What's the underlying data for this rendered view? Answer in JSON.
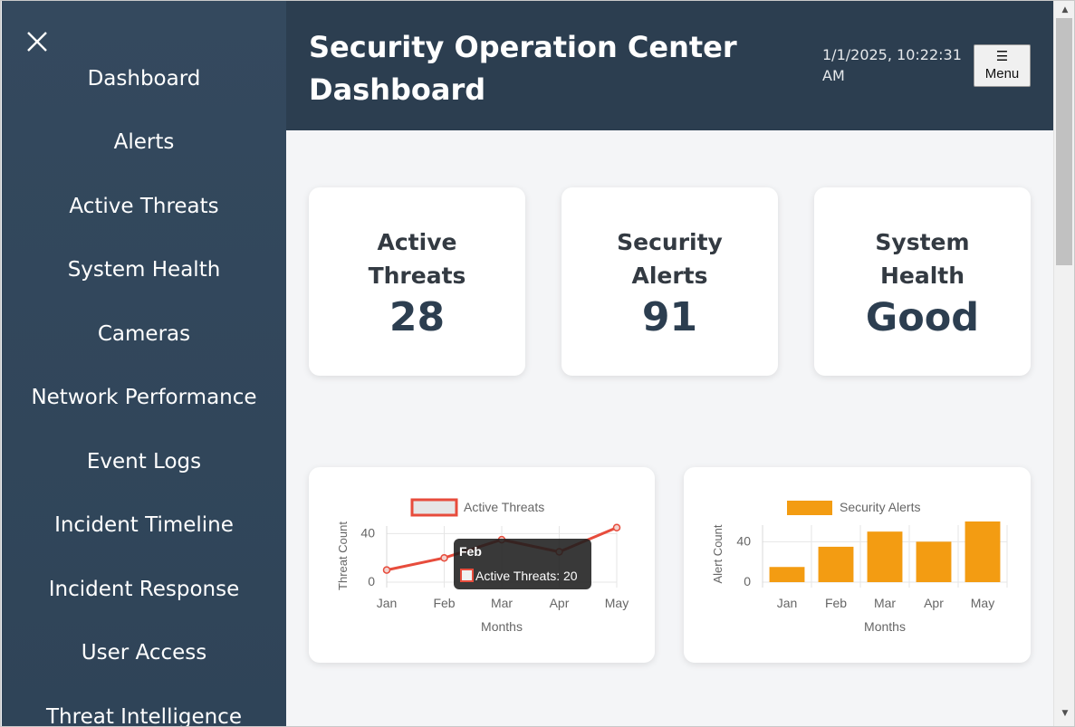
{
  "header": {
    "title": "Security Operation Center Dashboard",
    "datetime": "1/1/2025, 10:22:31 AM",
    "menu_icon": "☰",
    "menu_label": "Menu"
  },
  "sidebar": {
    "close_icon": "close-icon",
    "items": [
      {
        "label": "Dashboard"
      },
      {
        "label": "Alerts"
      },
      {
        "label": "Active Threats"
      },
      {
        "label": "System Health"
      },
      {
        "label": "Cameras"
      },
      {
        "label": "Network Performance"
      },
      {
        "label": "Event Logs"
      },
      {
        "label": "Incident Timeline"
      },
      {
        "label": "Incident Response"
      },
      {
        "label": "User Access"
      },
      {
        "label": "Threat Intelligence"
      }
    ]
  },
  "stats": [
    {
      "label": "Active Threats",
      "value": "28"
    },
    {
      "label": "Security Alerts",
      "value": "91"
    },
    {
      "label": "System Health",
      "value": "Good"
    }
  ],
  "colors": {
    "sidebar": "#34495e",
    "header": "#2c3e50",
    "threats_line": "#e74c3c",
    "alerts_bar": "#f39c12",
    "tooltip_bg": "#1e1e1e"
  },
  "chart_data": [
    {
      "type": "line",
      "categories": [
        "Jan",
        "Feb",
        "Mar",
        "Apr",
        "May"
      ],
      "series": [
        {
          "name": "Active Threats",
          "values": [
            10,
            20,
            35,
            25,
            45
          ]
        }
      ],
      "xlabel": "Months",
      "ylabel": "Threat Count",
      "yticks": [
        "40",
        "0"
      ],
      "ylim": [
        0,
        50
      ],
      "legend": "top",
      "tooltip": {
        "title": "Feb",
        "text": "Active Threats: 20"
      }
    },
    {
      "type": "bar",
      "categories": [
        "Jan",
        "Feb",
        "Mar",
        "Apr",
        "May"
      ],
      "series": [
        {
          "name": "Security Alerts",
          "values": [
            15,
            35,
            50,
            40,
            60
          ]
        }
      ],
      "xlabel": "Months",
      "ylabel": "Alert Count",
      "yticks": [
        "40",
        "0"
      ],
      "ylim": [
        0,
        60
      ],
      "legend": "top"
    }
  ]
}
